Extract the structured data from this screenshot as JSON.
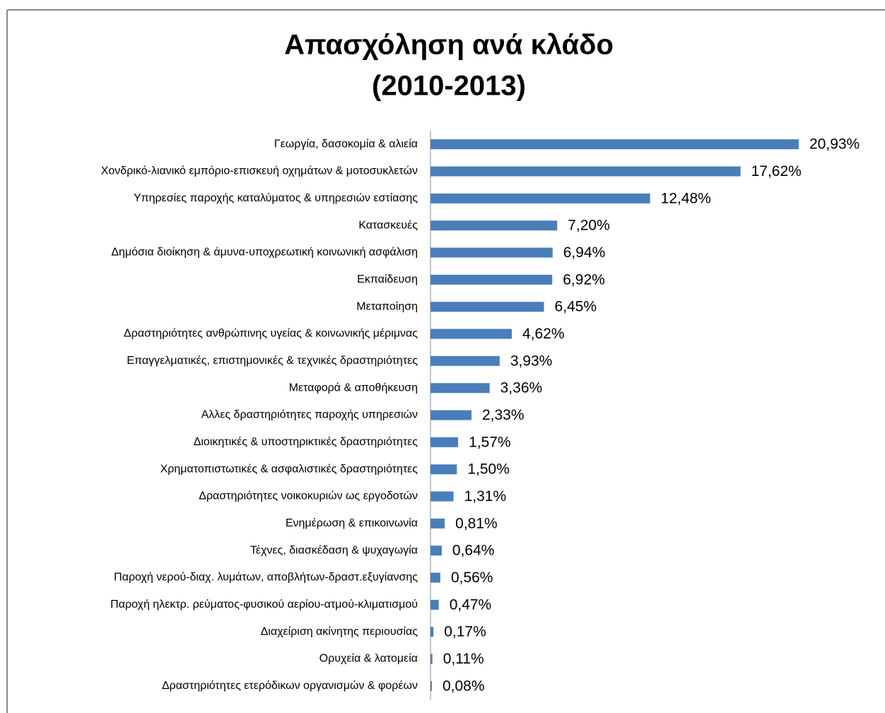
{
  "chart_data": {
    "type": "barh",
    "title": "Απασχόληση ανά κλάδο",
    "subtitle": "(2010-2013)",
    "color": "#4a7ebb",
    "categories": [
      "Γεωργία, δασοκομία & αλιεία",
      "Χονδρικό-λιανικό εμπόριο-επισκευή οχημάτων & μοτοσυκλετών",
      "Υπηρεσίες παροχής καταλύματος & υπηρεσιών εστίασης",
      "Κατασκευές",
      "Δημόσια διοίκηση & άμυνα-υποχρεωτική κοινωνική ασφάλιση",
      "Εκπαίδευση",
      "Μεταποίηση",
      "Δραστηριότητες ανθρώπινης υγείας & κοινωνικής μέριμνας",
      "Επαγγελματικές, επιστημονικές & τεχνικές δραστηριότητες",
      "Μεταφορά & αποθήκευση",
      "Αλλες δραστηριότητες παροχής υπηρεσιών",
      "Διοικητικές & υποστηρικτικές δραστηριότητες",
      "Χρηματοπιστωτικές & ασφαλιστικές δραστηριότητες",
      "Δραστηριότητες νοικοκυριών ως εργοδοτών",
      "Ενημέρωση & επικοινωνία",
      "Τέχνες, διασκέδαση & ψυχαγωγία",
      "Παροχή νερού-διαχ. λυμάτων, αποβλήτων-δραστ.εξυγίανσης",
      "Παροχή ηλεκτρ. ρεύματος-φυσικού αερίου-ατμού-κλιματισμού",
      "Διαχείριση ακίνητης περιουσίας",
      "Ορυχεία & λατομεία",
      "Δραστηριότητες ετερόδικων οργανισμών & φορέων"
    ],
    "values": [
      20.93,
      17.62,
      12.48,
      7.2,
      6.94,
      6.92,
      6.45,
      4.62,
      3.93,
      3.36,
      2.33,
      1.57,
      1.5,
      1.31,
      0.81,
      0.64,
      0.56,
      0.47,
      0.17,
      0.11,
      0.08
    ],
    "value_labels": [
      "20,93%",
      "17,62%",
      "12,48%",
      "7,20%",
      "6,94%",
      "6,92%",
      "6,45%",
      "4,62%",
      "3,93%",
      "3,36%",
      "2,33%",
      "1,57%",
      "1,50%",
      "1,31%",
      "0,81%",
      "0,64%",
      "0,56%",
      "0,47%",
      "0,17%",
      "0,11%",
      "0,08%"
    ]
  }
}
